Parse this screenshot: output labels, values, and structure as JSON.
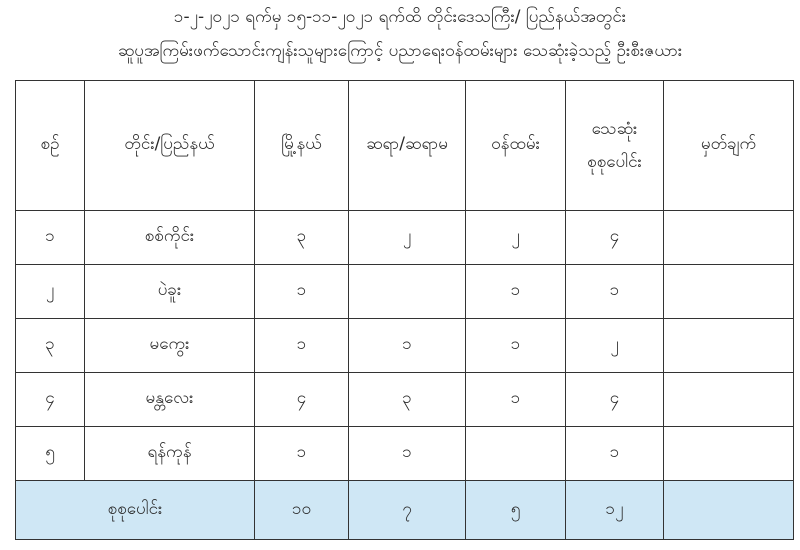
{
  "title_line1": "၁-၂-၂၀၂၁ ရက်မှ ၁၅-၁၁-၂၀၂၁ ရက်ထိ တိုင်းဒေသကြီး/ ပြည်နယ်အတွင်း",
  "title_line2": "ဆူပူအကြမ်းဖက်သောင်းကျန်းသူများကြောင့် ပညာရေးဝန်ထမ်းများ သေဆုံးခဲ့သည့် ဦးစီးဇယား",
  "headers": [
    "စဉ်",
    "တိုင်း/ပြည်နယ်",
    "မြို့နယ်",
    "ဆရာ/ဆရာမ",
    "ဝန်ထမ်း",
    "သေဆုံး စုစုပေါင်း",
    "မှတ်ချက်"
  ],
  "rows": [
    {
      "no": "၁",
      "region": "စစ်ကိုင်း",
      "townships": "၃",
      "teachers": "၂",
      "staff": "၂",
      "total": "၄",
      "remarks": ""
    },
    {
      "no": "၂",
      "region": "ပဲခူး",
      "townships": "၁",
      "teachers": "",
      "staff": "၁",
      "total": "၁",
      "remarks": ""
    },
    {
      "no": "၃",
      "region": "မကွေး",
      "townships": "၁",
      "teachers": "၁",
      "staff": "၁",
      "total": "၂",
      "remarks": ""
    },
    {
      "no": "၄",
      "region": "မန္တလေး",
      "townships": "၄",
      "teachers": "၃",
      "staff": "၁",
      "total": "၄",
      "remarks": ""
    },
    {
      "no": "၅",
      "region": "ရန်ကုန်",
      "townships": "၁",
      "teachers": "၁",
      "staff": "",
      "total": "၁",
      "remarks": ""
    }
  ],
  "total_row": {
    "label": "စုစုပေါင်း",
    "townships": "၁၀",
    "teachers": "၇",
    "staff": "၅",
    "total": "၁၂",
    "remarks": ""
  },
  "colors": {
    "total_row_bg": "#cfe7f5",
    "border": "#333333"
  }
}
